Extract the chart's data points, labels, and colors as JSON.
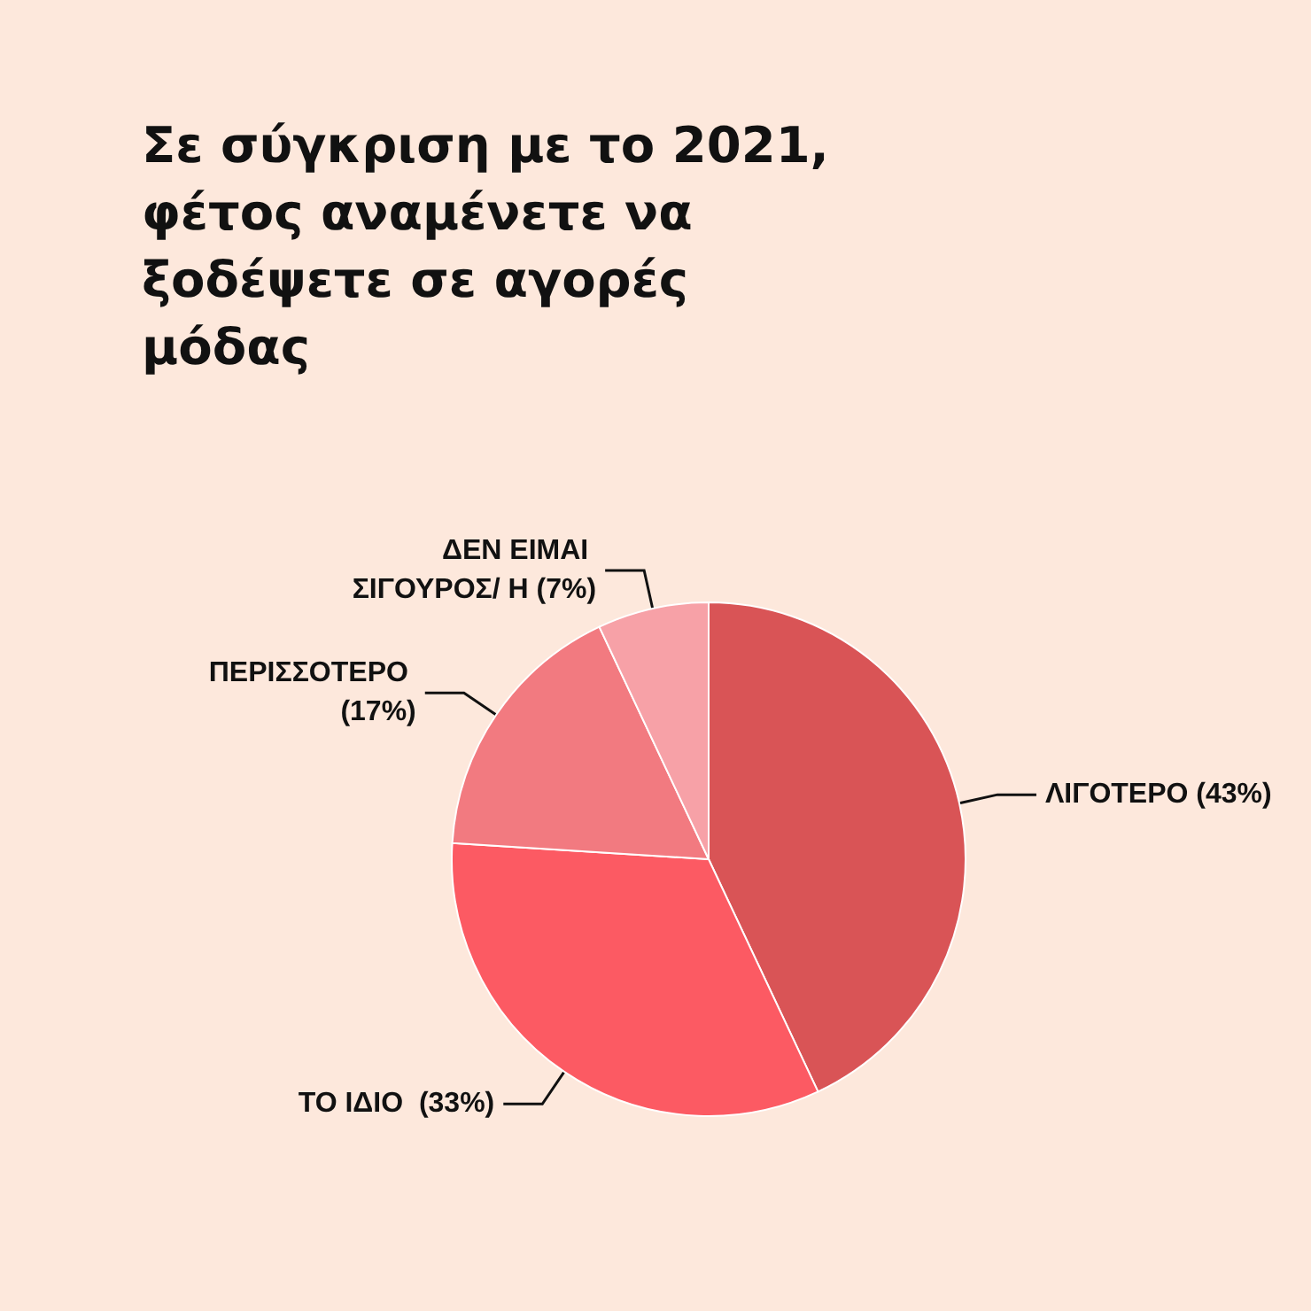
{
  "chart_data": {
    "type": "pie",
    "title": "Σε σύγκριση με το 2021, φέτος αναμένετε να ξοδέψετε σε αγορές μόδας",
    "categories": [
      "ΛΙΓΟΤΕΡΟ (43%)",
      "ΤΟ ΙΔΙΟ  (33%)",
      "ΠΕΡΙΣΣΟΤΕΡΟ (17%)",
      "ΔΕΝ ΕΙΜΑΙ ΣΙΓΟΥΡΟΣ/ Η (7%)"
    ],
    "values": [
      43,
      33,
      17,
      7
    ],
    "colors": [
      "#d95456",
      "#fc5a63",
      "#f27a80",
      "#f7a1a7"
    ],
    "legend": false
  }
}
